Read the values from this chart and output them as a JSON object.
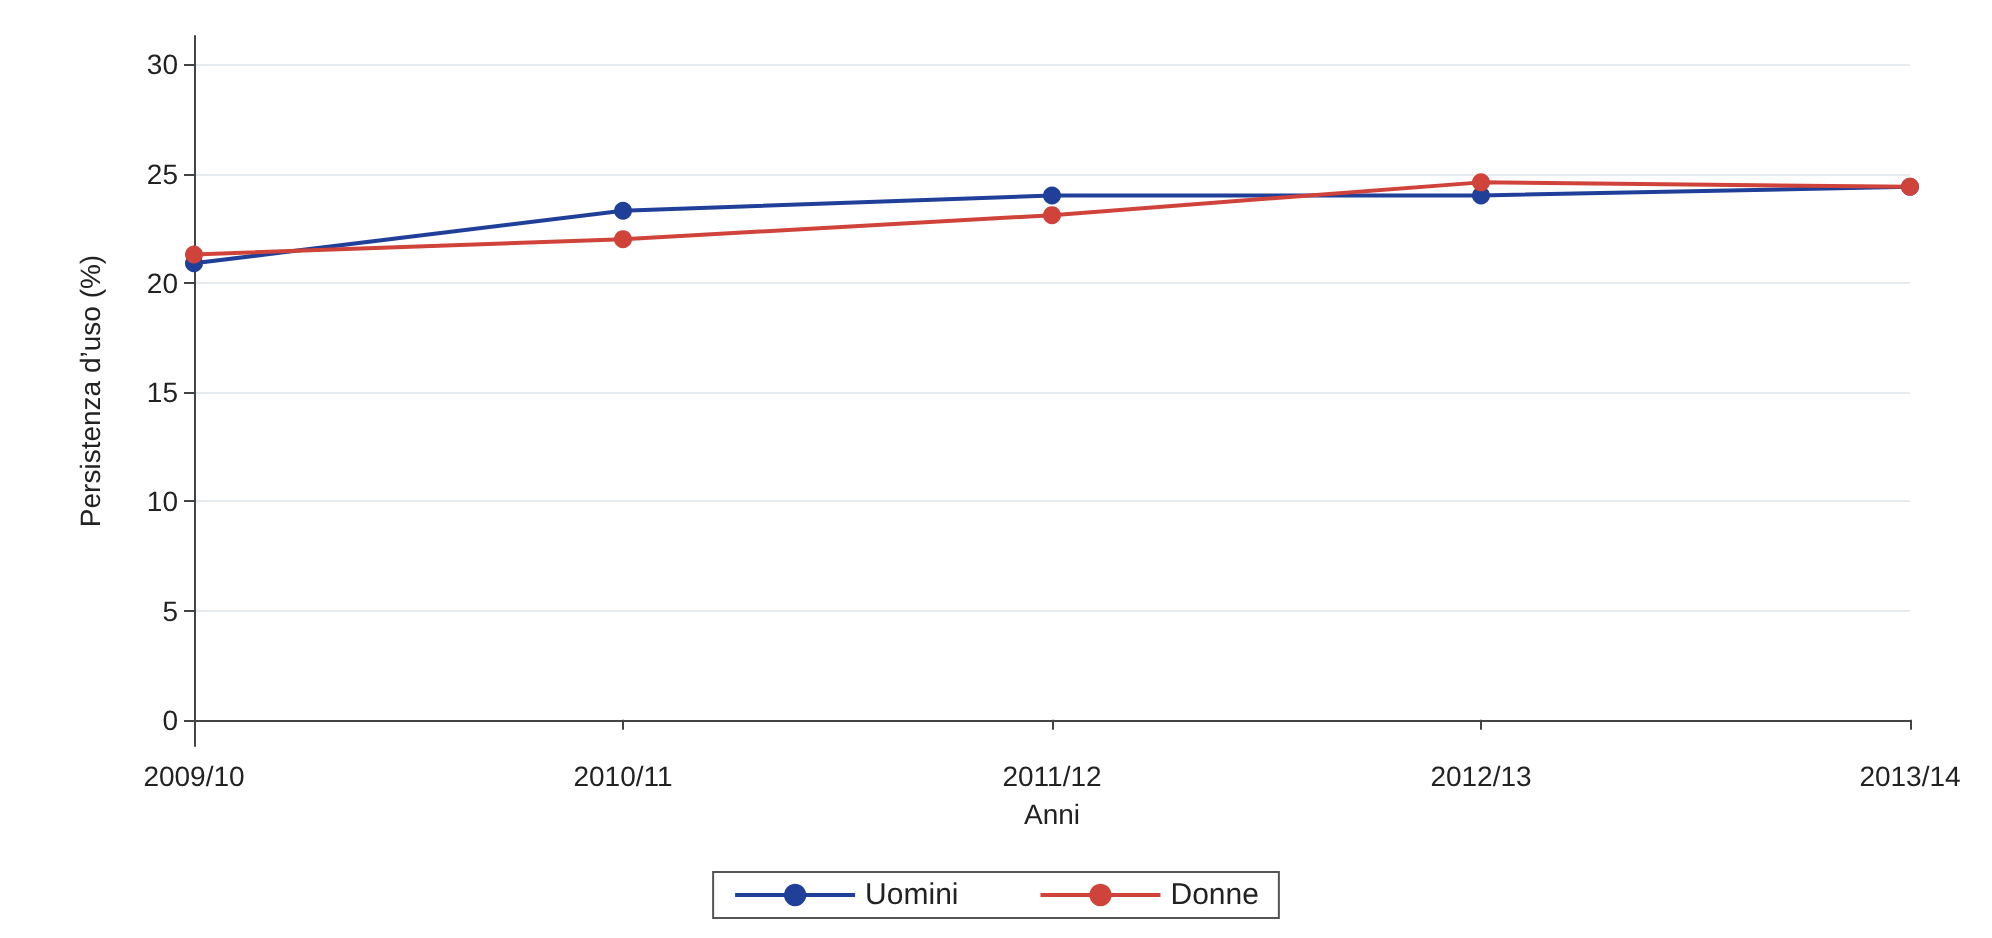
{
  "chart_data": {
    "type": "line",
    "xlabel": "Anni",
    "ylabel": "Persistenza d’uso (%)",
    "categories": [
      "2009/10",
      "2010/11",
      "2011/12",
      "2012/13",
      "2013/14"
    ],
    "series": [
      {
        "name": "Uomini",
        "color": "#1f3f99",
        "values": [
          20.9,
          23.3,
          24.0,
          24.0,
          24.4
        ]
      },
      {
        "name": "Donne",
        "color": "#d0433a",
        "values": [
          21.3,
          22.0,
          23.1,
          24.6,
          24.4
        ]
      }
    ],
    "ylim": [
      -1.2,
      31.3
    ],
    "yticks": [
      0,
      5,
      10,
      15,
      20,
      25,
      30
    ],
    "grid": "y",
    "legend": "bottom",
    "marker": "circle",
    "line_style": "solid"
  }
}
